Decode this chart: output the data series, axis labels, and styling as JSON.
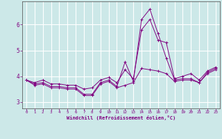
{
  "xlabel": "Windchill (Refroidissement éolien,°C)",
  "x": [
    0,
    1,
    2,
    3,
    4,
    5,
    6,
    7,
    8,
    9,
    10,
    11,
    12,
    13,
    14,
    15,
    16,
    17,
    18,
    19,
    20,
    21,
    22,
    23
  ],
  "y_main": [
    3.85,
    3.7,
    3.75,
    3.6,
    3.6,
    3.55,
    3.55,
    3.3,
    3.3,
    3.75,
    3.85,
    3.6,
    4.55,
    3.8,
    6.2,
    6.6,
    5.65,
    4.7,
    3.85,
    3.9,
    3.9,
    3.75,
    4.15,
    4.3
  ],
  "y_upper": [
    3.85,
    3.75,
    3.85,
    3.7,
    3.7,
    3.65,
    3.65,
    3.5,
    3.55,
    3.85,
    3.95,
    3.75,
    4.25,
    3.9,
    5.8,
    6.2,
    5.4,
    5.3,
    3.9,
    4.0,
    4.1,
    3.85,
    4.2,
    4.35
  ],
  "y_lower": [
    3.85,
    3.65,
    3.7,
    3.55,
    3.55,
    3.5,
    3.5,
    3.25,
    3.25,
    3.7,
    3.8,
    3.55,
    3.65,
    3.75,
    4.3,
    4.25,
    4.2,
    4.1,
    3.8,
    3.85,
    3.85,
    3.75,
    4.1,
    4.25
  ],
  "line_color": "#800080",
  "bg_color": "#cce8e8",
  "grid_color": "#ffffff",
  "xlim": [
    -0.5,
    23.5
  ],
  "ylim": [
    2.75,
    6.9
  ],
  "yticks": [
    3,
    4,
    5,
    6
  ],
  "xticks": [
    0,
    1,
    2,
    3,
    4,
    5,
    6,
    7,
    8,
    9,
    10,
    11,
    12,
    13,
    14,
    15,
    16,
    17,
    18,
    19,
    20,
    21,
    22,
    23
  ]
}
